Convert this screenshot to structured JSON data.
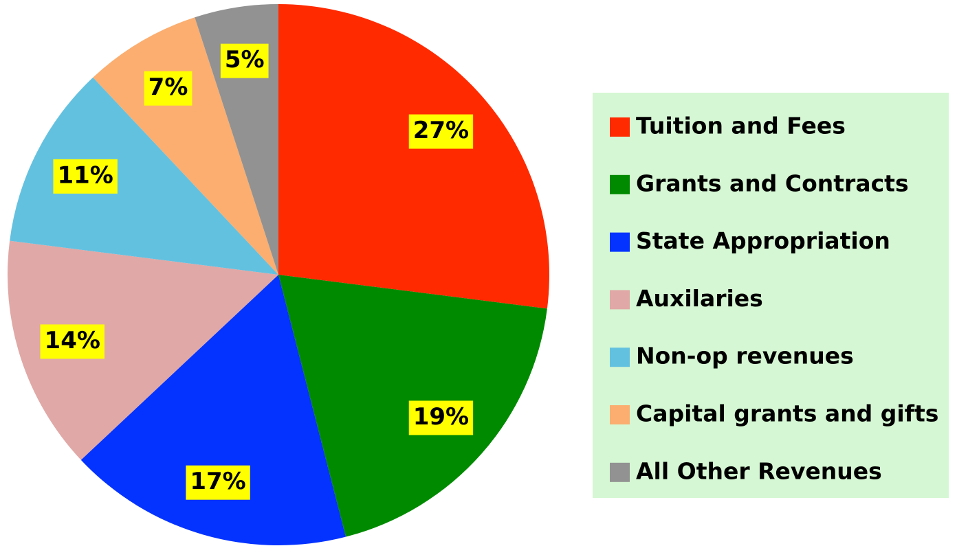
{
  "chart_data": {
    "type": "pie",
    "categories": [
      "Tuition and Fees",
      "Grants and Contracts",
      "State Appropriation",
      "Auxilaries",
      "Non-op revenues",
      "Capital grants and gifts",
      "All Other Revenues"
    ],
    "values": [
      27,
      19,
      17,
      14,
      11,
      7,
      5
    ],
    "value_labels": [
      "27%",
      "19%",
      "17%",
      "14%",
      "11%",
      "7%",
      "5%"
    ],
    "colors": [
      "#ff2a00",
      "#008a00",
      "#0433ff",
      "#e0a8a6",
      "#63c1e0",
      "#fbae70",
      "#929292"
    ],
    "legend": "right"
  }
}
